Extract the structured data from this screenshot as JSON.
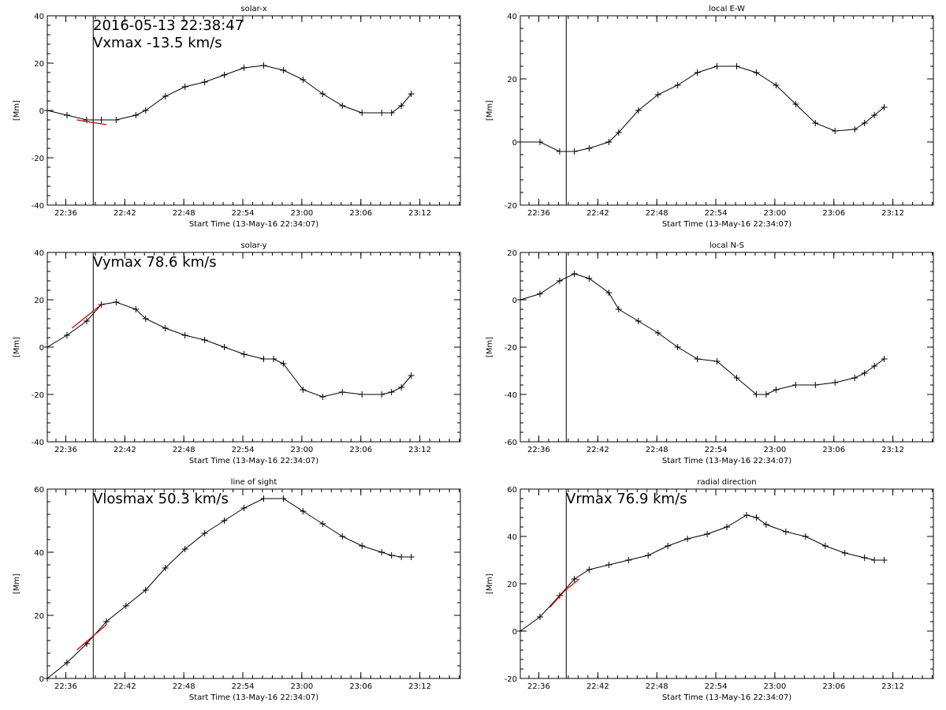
{
  "figure": {
    "xlabel": "Start Time (13-May-16 22:34:07)",
    "ylabel": "[Mm]",
    "x_tick_labels": [
      "22:36",
      "22:42",
      "22:48",
      "22:54",
      "23:00",
      "23:06",
      "23:12"
    ],
    "marker_time": "22:38:47"
  },
  "colors": {
    "axes": "#000000",
    "series": "#000000",
    "fit": "#cc0000",
    "background": "#ffffff"
  },
  "chart_data": [
    {
      "type": "line",
      "title": "solar-x",
      "ylim": [
        -40,
        40
      ],
      "y_ticks": [
        -40,
        -20,
        0,
        20,
        40
      ],
      "annotations": [
        "2016-05-13 22:38:47",
        "Vxmax  -13.5 km/s"
      ],
      "series": [
        {
          "values": [
            [
              0,
              0
            ],
            [
              2,
              -2
            ],
            [
              4,
              -4
            ],
            [
              5.5,
              -4
            ],
            [
              7,
              -4
            ],
            [
              9,
              -2
            ],
            [
              10,
              0
            ],
            [
              12,
              6
            ],
            [
              14,
              10
            ],
            [
              16,
              12
            ],
            [
              18,
              15
            ],
            [
              20,
              18
            ],
            [
              22,
              19
            ],
            [
              24,
              17
            ],
            [
              26,
              13
            ],
            [
              28,
              7
            ],
            [
              30,
              2
            ],
            [
              32,
              -1
            ],
            [
              34,
              -1
            ],
            [
              35,
              -1
            ],
            [
              36,
              2
            ],
            [
              37,
              7
            ]
          ]
        }
      ],
      "fit": [
        [
          3,
          -4
        ],
        [
          4.5,
          -5
        ],
        [
          6,
          -6
        ]
      ]
    },
    {
      "type": "line",
      "title": "local E-W",
      "ylim": [
        -20,
        40
      ],
      "y_ticks": [
        -20,
        0,
        20,
        40
      ],
      "annotations": [],
      "series": [
        {
          "values": [
            [
              0,
              0
            ],
            [
              2,
              0
            ],
            [
              4,
              -3
            ],
            [
              5.5,
              -3
            ],
            [
              7,
              -2
            ],
            [
              9,
              0
            ],
            [
              10,
              3
            ],
            [
              12,
              10
            ],
            [
              14,
              15
            ],
            [
              16,
              18
            ],
            [
              18,
              22
            ],
            [
              20,
              24
            ],
            [
              22,
              24
            ],
            [
              24,
              22
            ],
            [
              26,
              18
            ],
            [
              28,
              12
            ],
            [
              30,
              6
            ],
            [
              32,
              3.5
            ],
            [
              34,
              4
            ],
            [
              35,
              6
            ],
            [
              36,
              8.5
            ],
            [
              37,
              11
            ]
          ]
        }
      ],
      "fit": []
    },
    {
      "type": "line",
      "title": "solar-y",
      "ylim": [
        -40,
        40
      ],
      "y_ticks": [
        -40,
        -20,
        0,
        20,
        40
      ],
      "annotations": [
        "Vymax   78.6 km/s"
      ],
      "series": [
        {
          "values": [
            [
              0,
              0
            ],
            [
              2,
              5
            ],
            [
              4,
              11
            ],
            [
              5.5,
              18
            ],
            [
              7,
              19
            ],
            [
              9,
              16
            ],
            [
              10,
              12
            ],
            [
              12,
              8
            ],
            [
              14,
              5
            ],
            [
              16,
              3
            ],
            [
              18,
              0
            ],
            [
              20,
              -3
            ],
            [
              22,
              -5
            ],
            [
              23,
              -5
            ],
            [
              24,
              -7
            ],
            [
              26,
              -18
            ],
            [
              28,
              -21
            ],
            [
              30,
              -19
            ],
            [
              32,
              -20
            ],
            [
              34,
              -20
            ],
            [
              35,
              -19
            ],
            [
              36,
              -17
            ],
            [
              37,
              -12
            ]
          ]
        }
      ],
      "fit": [
        [
          2.5,
          8
        ],
        [
          4,
          13
        ],
        [
          5.5,
          18
        ]
      ]
    },
    {
      "type": "line",
      "title": "local N-S",
      "ylim": [
        -60,
        20
      ],
      "y_ticks": [
        -60,
        -40,
        -20,
        0,
        20
      ],
      "annotations": [],
      "series": [
        {
          "values": [
            [
              0,
              0
            ],
            [
              2,
              2.5
            ],
            [
              4,
              8
            ],
            [
              5.5,
              11
            ],
            [
              7,
              9
            ],
            [
              9,
              3
            ],
            [
              10,
              -4
            ],
            [
              12,
              -9
            ],
            [
              14,
              -14
            ],
            [
              16,
              -20
            ],
            [
              18,
              -25
            ],
            [
              20,
              -26
            ],
            [
              22,
              -33
            ],
            [
              24,
              -40
            ],
            [
              25,
              -40
            ],
            [
              26,
              -38
            ],
            [
              28,
              -36
            ],
            [
              30,
              -36
            ],
            [
              32,
              -35
            ],
            [
              34,
              -33
            ],
            [
              35,
              -31
            ],
            [
              36,
              -28
            ],
            [
              37,
              -25
            ]
          ]
        }
      ],
      "fit": []
    },
    {
      "type": "line",
      "title": "line of sight",
      "ylim": [
        0,
        60
      ],
      "y_ticks": [
        0,
        20,
        40,
        60
      ],
      "annotations": [
        "Vlosmax   50.3 km/s"
      ],
      "series": [
        {
          "values": [
            [
              0,
              0
            ],
            [
              2,
              5
            ],
            [
              4,
              11
            ],
            [
              6,
              18
            ],
            [
              8,
              23
            ],
            [
              10,
              28
            ],
            [
              12,
              35
            ],
            [
              14,
              41
            ],
            [
              16,
              46
            ],
            [
              18,
              50
            ],
            [
              20,
              54
            ],
            [
              22,
              57
            ],
            [
              24,
              57
            ],
            [
              26,
              53
            ],
            [
              28,
              49
            ],
            [
              30,
              45
            ],
            [
              32,
              42
            ],
            [
              34,
              40
            ],
            [
              35,
              39
            ],
            [
              36,
              38.5
            ],
            [
              37,
              38.5
            ]
          ]
        }
      ],
      "fit": [
        [
          3,
          9
        ],
        [
          4.5,
          13
        ],
        [
          6,
          17
        ]
      ]
    },
    {
      "type": "line",
      "title": "radial direction",
      "ylim": [
        -20,
        60
      ],
      "y_ticks": [
        -20,
        0,
        20,
        40,
        60
      ],
      "annotations": [
        "Vrmax   76.9 km/s"
      ],
      "series": [
        {
          "values": [
            [
              0,
              0
            ],
            [
              2,
              6
            ],
            [
              4,
              15
            ],
            [
              5.5,
              22
            ],
            [
              7,
              26
            ],
            [
              9,
              28
            ],
            [
              11,
              30
            ],
            [
              13,
              32
            ],
            [
              15,
              36
            ],
            [
              17,
              39
            ],
            [
              19,
              41
            ],
            [
              21,
              44
            ],
            [
              23,
              49
            ],
            [
              24,
              48
            ],
            [
              25,
              45
            ],
            [
              27,
              42
            ],
            [
              29,
              40
            ],
            [
              31,
              36
            ],
            [
              33,
              33
            ],
            [
              35,
              31
            ],
            [
              36,
              30
            ],
            [
              37,
              30
            ]
          ]
        }
      ],
      "fit": [
        [
          3,
          10
        ],
        [
          4.5,
          17
        ],
        [
          6,
          22
        ]
      ]
    }
  ]
}
